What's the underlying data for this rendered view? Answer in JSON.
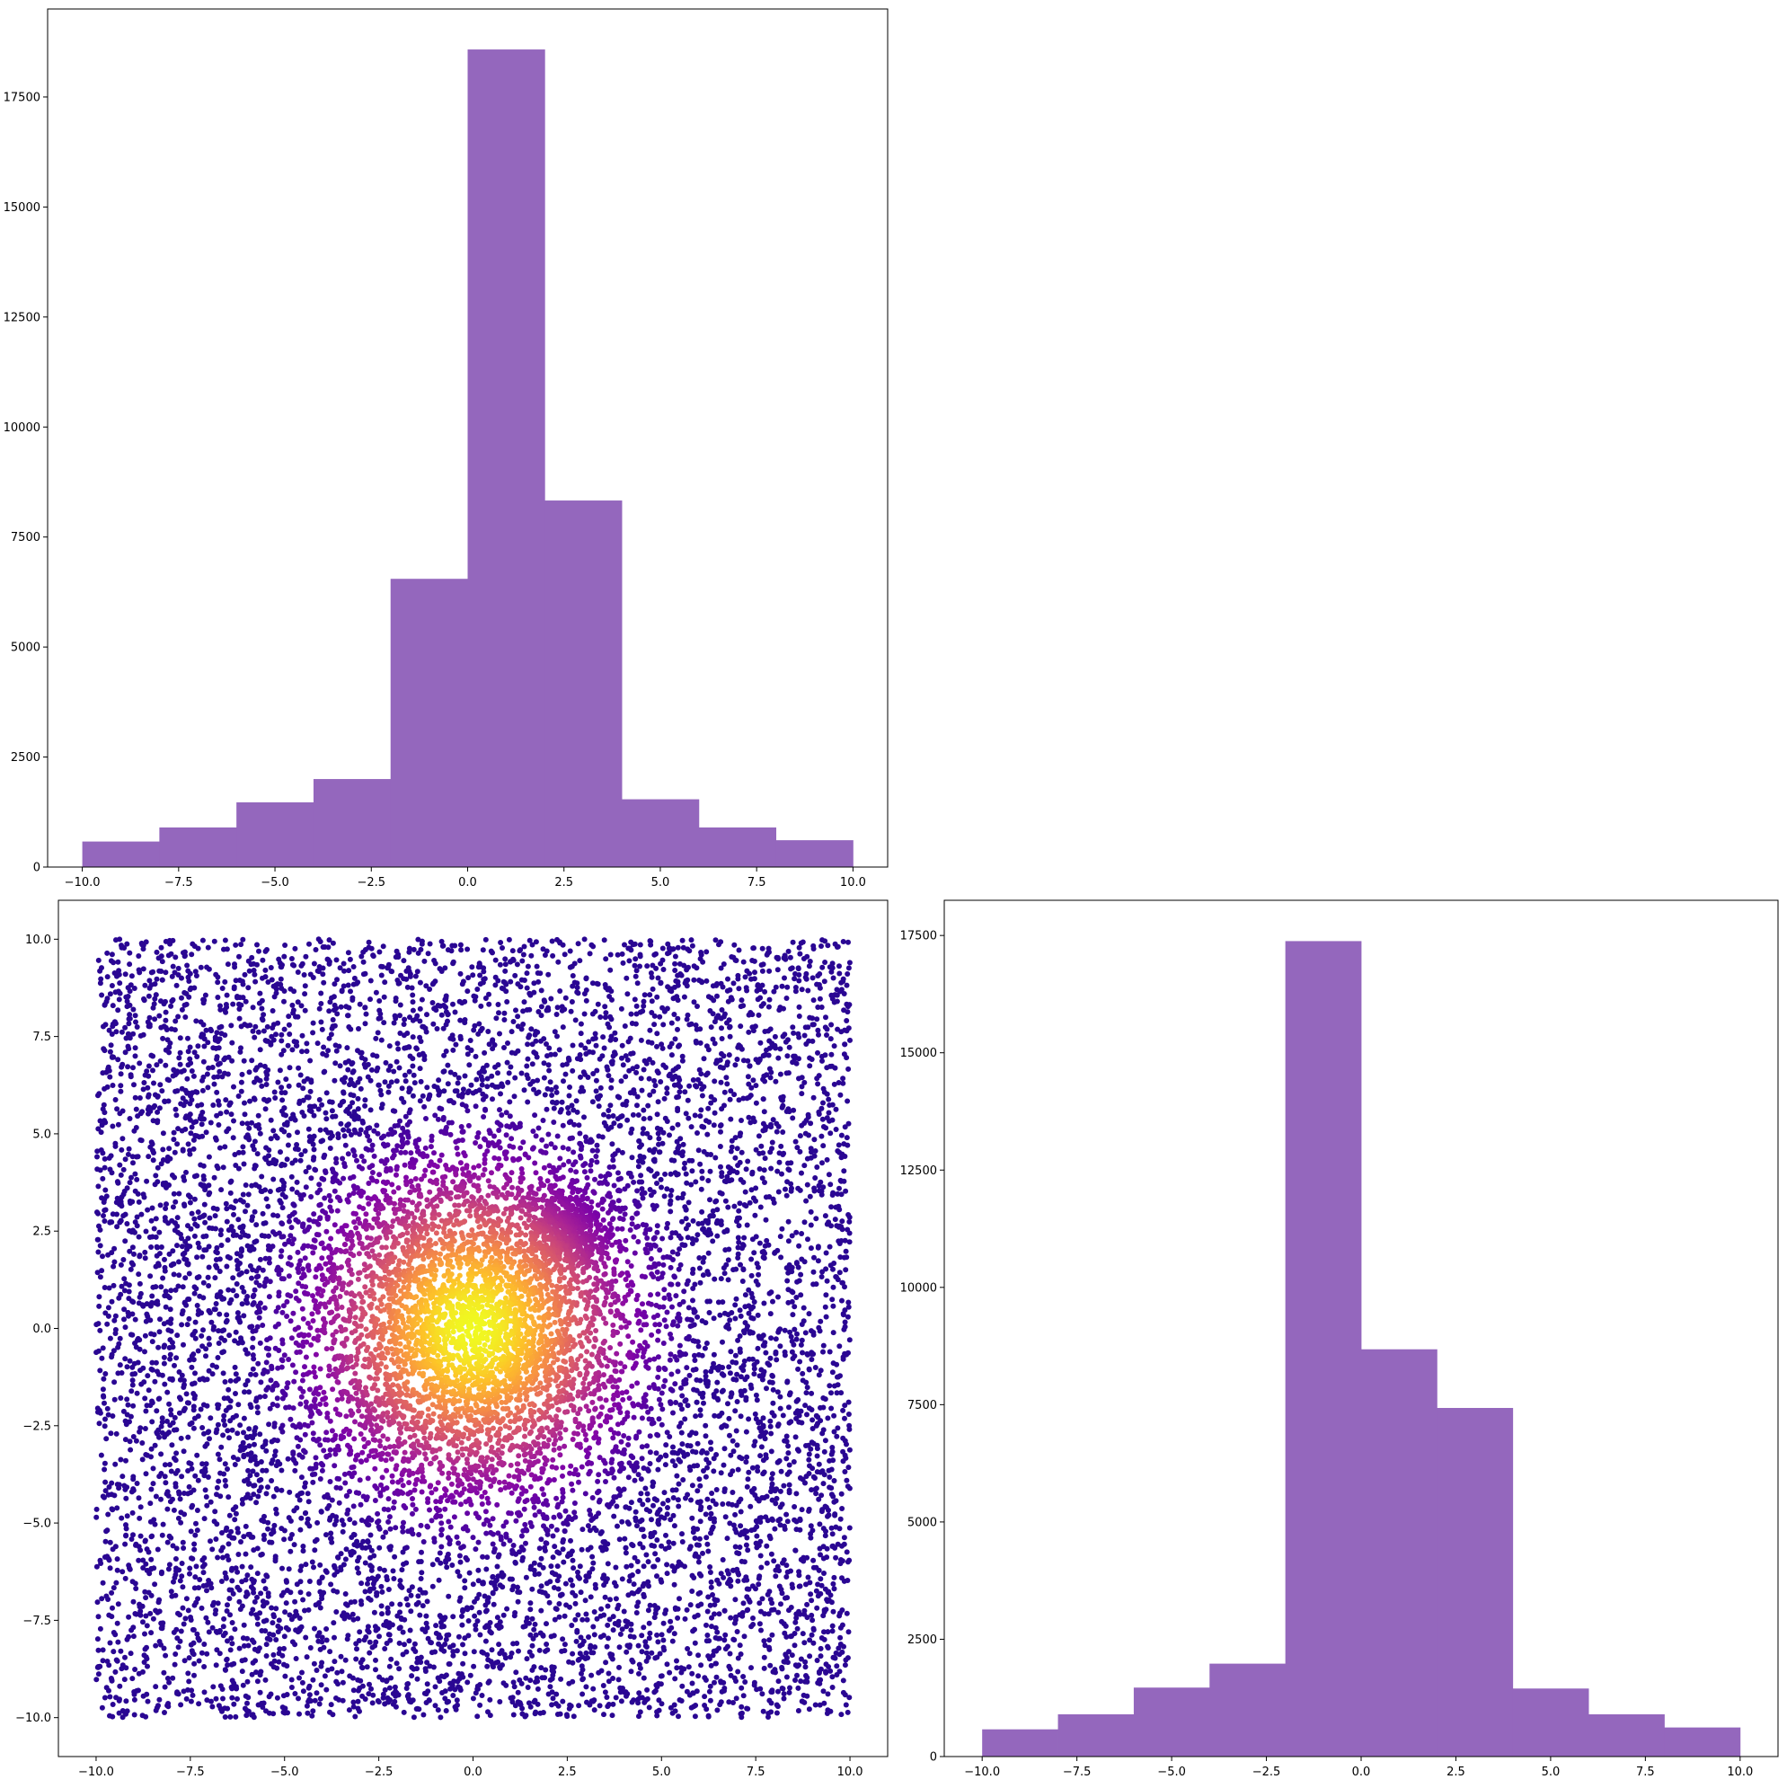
{
  "colors": {
    "bar_fill": "#9467bd",
    "axis": "#000000",
    "scatter_colormap": "plasma",
    "scatter_low": "#1e0a8c",
    "scatter_mid": "#a51f9a",
    "scatter_high": "#f0f921"
  },
  "chart_data": [
    {
      "id": "top-histogram",
      "type": "bar",
      "title": "",
      "xlabel": "",
      "ylabel": "",
      "bin_edges": [
        -10,
        -8,
        -6,
        -4,
        -2,
        0,
        2,
        4,
        6,
        8,
        10
      ],
      "values": [
        580,
        900,
        1470,
        2000,
        6550,
        18580,
        8330,
        1540,
        900,
        610
      ],
      "xlim": [
        -10.9,
        10.9
      ],
      "ylim": [
        0,
        19500
      ],
      "xticks": [
        -10,
        -7.5,
        -5,
        -2.5,
        0,
        2.5,
        5,
        7.5,
        10
      ],
      "xtick_labels": [
        "−10.0",
        "−7.5",
        "−5.0",
        "−2.5",
        "0.0",
        "2.5",
        "5.0",
        "7.5",
        "10.0"
      ],
      "yticks": [
        0,
        2500,
        5000,
        7500,
        10000,
        12500,
        15000,
        17500
      ],
      "ytick_labels": [
        "0",
        "2500",
        "5000",
        "7500",
        "10000",
        "12500",
        "15000",
        "17500"
      ],
      "grid": false
    },
    {
      "id": "scatter-plot",
      "type": "scatter",
      "title": "",
      "xlabel": "",
      "ylabel": "",
      "colormap": "plasma",
      "points_description_values": {
        "uniform_background": {
          "count": 9000,
          "xrange": [
            -10,
            10
          ],
          "yrange": [
            -10,
            10
          ]
        },
        "central_cluster": {
          "count": 3000,
          "center": [
            0,
            0
          ],
          "spread": 2.0
        },
        "secondary_cluster": {
          "count": 500,
          "center": [
            2.5,
            2.5
          ],
          "spread": 0.5
        }
      },
      "xlim": [
        -11,
        11
      ],
      "ylim": [
        -11,
        11
      ],
      "xticks": [
        -10,
        -7.5,
        -5,
        -2.5,
        0,
        2.5,
        5,
        7.5,
        10
      ],
      "xtick_labels": [
        "−10.0",
        "−7.5",
        "−5.0",
        "−2.5",
        "0.0",
        "2.5",
        "5.0",
        "7.5",
        "10.0"
      ],
      "yticks": [
        -10,
        -7.5,
        -5,
        -2.5,
        0,
        2.5,
        5,
        7.5,
        10
      ],
      "ytick_labels": [
        "−10.0",
        "−7.5",
        "−5.0",
        "−2.5",
        "0.0",
        "2.5",
        "5.0",
        "7.5",
        "10.0"
      ],
      "grid": false
    },
    {
      "id": "right-histogram",
      "type": "bar",
      "title": "",
      "xlabel": "",
      "ylabel": "",
      "bin_edges": [
        -10,
        -8,
        -6,
        -4,
        -2,
        0,
        2,
        4,
        6,
        8,
        10
      ],
      "values": [
        580,
        900,
        1470,
        1980,
        17380,
        8680,
        7430,
        1450,
        900,
        620
      ],
      "xlim": [
        -11,
        11
      ],
      "ylim": [
        0,
        18250
      ],
      "xticks": [
        -10,
        -7.5,
        -5,
        -2.5,
        0,
        2.5,
        5,
        7.5,
        10
      ],
      "xtick_labels": [
        "−10.0",
        "−7.5",
        "−5.0",
        "−2.5",
        "0.0",
        "2.5",
        "5.0",
        "7.5",
        "10.0"
      ],
      "yticks": [
        0,
        2500,
        5000,
        7500,
        10000,
        12500,
        15000,
        17500
      ],
      "ytick_labels": [
        "0",
        "2500",
        "5000",
        "7500",
        "10000",
        "12500",
        "15000",
        "17500"
      ],
      "grid": false
    }
  ]
}
